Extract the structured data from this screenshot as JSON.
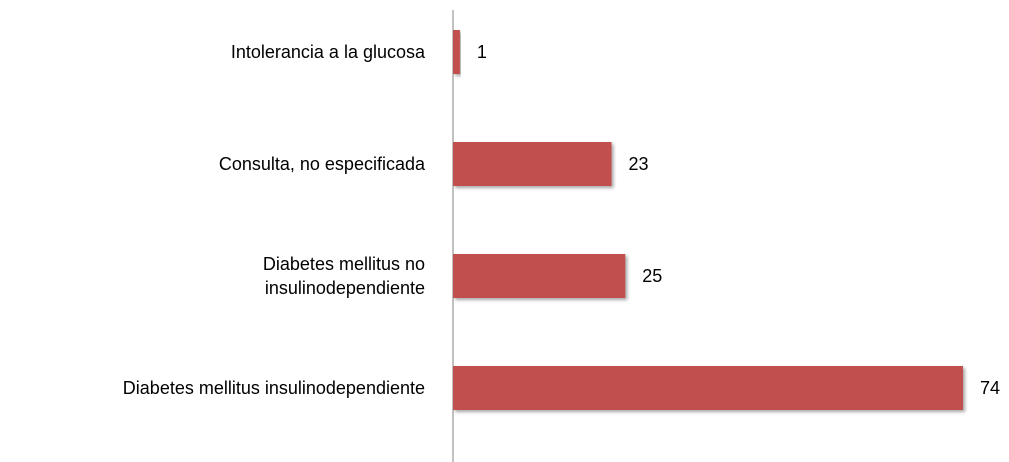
{
  "chart_data": {
    "type": "bar",
    "orientation": "horizontal",
    "categories": [
      "Intolerancia a la glucosa",
      "Consulta, no especificada",
      "Diabetes mellitus no insulinodependiente",
      "Diabetes mellitus insulinodependiente"
    ],
    "values": [
      1,
      23,
      25,
      74
    ],
    "color": "#c0504d"
  }
}
